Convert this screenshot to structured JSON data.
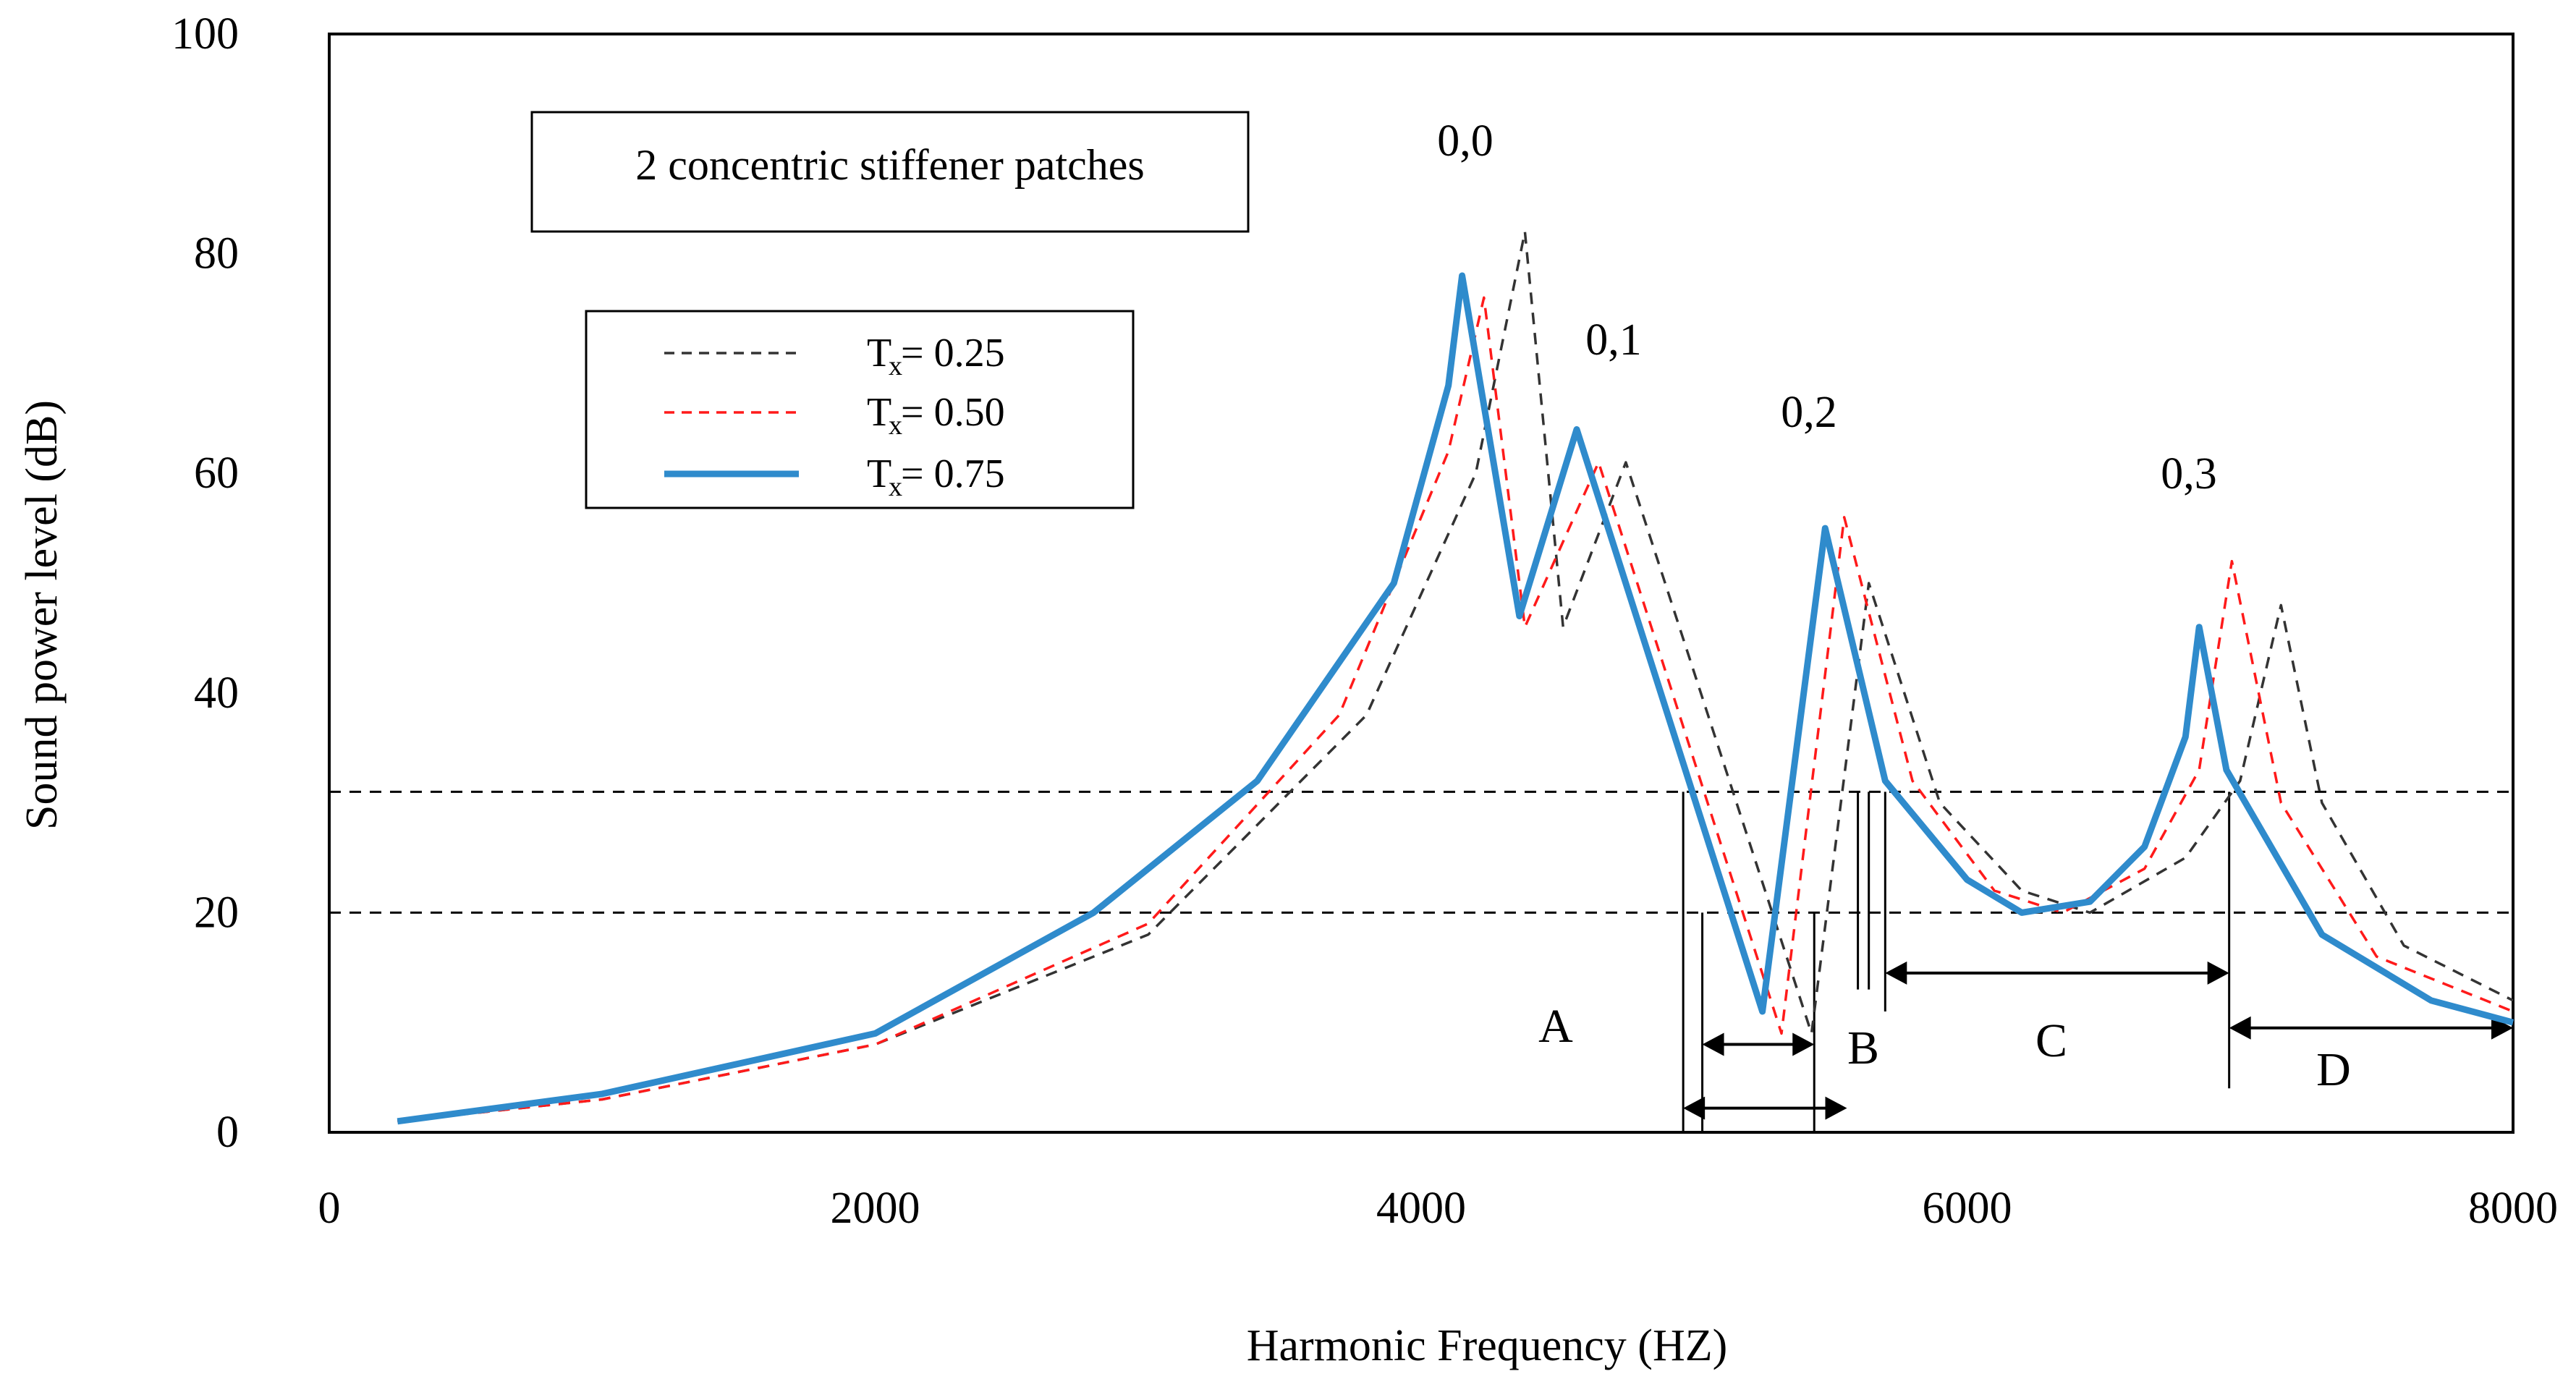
{
  "chart_data": {
    "type": "line",
    "title": "2 concentric stiffener patches",
    "xlabel": "Harmonic Frequency (HZ)",
    "ylabel": "Sound power level (dB)",
    "xlim": [
      0,
      8000
    ],
    "ylim": [
      0,
      100
    ],
    "x_ticks": [
      "0",
      "2000",
      "4000",
      "6000",
      "8000"
    ],
    "y_ticks": [
      "0",
      "20",
      "40",
      "60",
      "80",
      "100"
    ],
    "grid": false,
    "legend_position": "top-left",
    "series": [
      {
        "name": "Tx = 0.25",
        "legend_label": "T",
        "legend_sub": "x",
        "legend_value": " = 0.25",
        "style": "dashed",
        "color": "#333333",
        "points": [
          [
            250,
            1
          ],
          [
            1000,
            3
          ],
          [
            2000,
            8
          ],
          [
            3000,
            18
          ],
          [
            3800,
            38
          ],
          [
            4200,
            60
          ],
          [
            4380,
            82
          ],
          [
            4520,
            46
          ],
          [
            4750,
            61
          ],
          [
            5430,
            9
          ],
          [
            5640,
            50
          ],
          [
            5900,
            30
          ],
          [
            6200,
            22
          ],
          [
            6450,
            20
          ],
          [
            6800,
            25
          ],
          [
            7000,
            32
          ],
          [
            7150,
            48
          ],
          [
            7300,
            30
          ],
          [
            7600,
            17
          ],
          [
            8000,
            12
          ]
        ]
      },
      {
        "name": "Tx = 0.50",
        "legend_label": "T",
        "legend_sub": "x",
        "legend_value": " = 0.50",
        "style": "dashed",
        "color": "#ff1a1a",
        "points": [
          [
            250,
            1
          ],
          [
            1000,
            3
          ],
          [
            2000,
            8
          ],
          [
            3000,
            19
          ],
          [
            3700,
            38
          ],
          [
            4100,
            62
          ],
          [
            4230,
            76
          ],
          [
            4380,
            46
          ],
          [
            4650,
            61
          ],
          [
            5320,
            9
          ],
          [
            5550,
            56
          ],
          [
            5800,
            32
          ],
          [
            6100,
            22
          ],
          [
            6350,
            20
          ],
          [
            6650,
            24
          ],
          [
            6850,
            33
          ],
          [
            6970,
            52
          ],
          [
            7150,
            30
          ],
          [
            7500,
            16
          ],
          [
            8000,
            11
          ]
        ]
      },
      {
        "name": "Tx = 0.75",
        "legend_label": "T",
        "legend_sub": "x",
        "legend_value": " = 0.75",
        "style": "solid",
        "color": "#2f8bcc",
        "points": [
          [
            250,
            1
          ],
          [
            1000,
            3.5
          ],
          [
            2000,
            9
          ],
          [
            2800,
            20
          ],
          [
            3400,
            32
          ],
          [
            3900,
            50
          ],
          [
            4100,
            68
          ],
          [
            4150,
            78
          ],
          [
            4360,
            47
          ],
          [
            4570,
            64
          ],
          [
            5250,
            11
          ],
          [
            5480,
            55
          ],
          [
            5700,
            32
          ],
          [
            6000,
            23
          ],
          [
            6200,
            20
          ],
          [
            6450,
            21
          ],
          [
            6650,
            26
          ],
          [
            6800,
            36
          ],
          [
            6850,
            46
          ],
          [
            6950,
            33
          ],
          [
            7300,
            18
          ],
          [
            7700,
            12
          ],
          [
            8000,
            10
          ]
        ]
      }
    ],
    "annotations": [
      "0,0",
      "0,1",
      "0,2",
      "0,3"
    ],
    "reference_lines_y": [
      20,
      31
    ],
    "regions": [
      {
        "label": "A",
        "x_start": 5100,
        "x_end": 5550
      },
      {
        "label": "B",
        "x_start": 5600,
        "x_end": 5660
      },
      {
        "label": "C",
        "x_start": 5700,
        "x_end": 6950
      },
      {
        "label": "D",
        "x_start": 6950,
        "x_end": 8000
      }
    ]
  }
}
